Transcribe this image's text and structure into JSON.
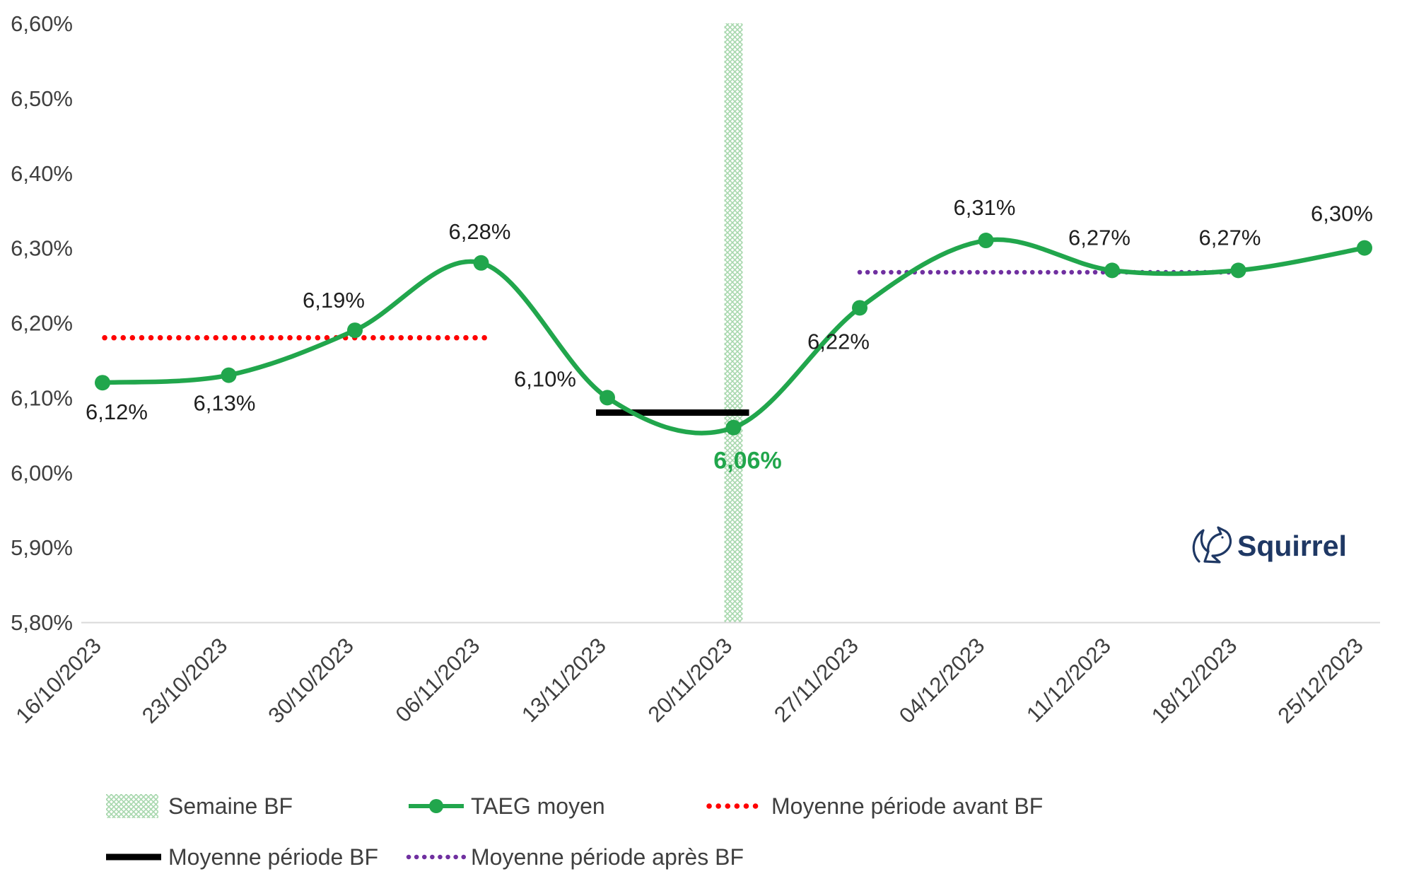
{
  "chart_data": {
    "type": "line",
    "title": "",
    "x": [
      "16/10/2023",
      "23/10/2023",
      "30/10/2023",
      "06/11/2023",
      "13/11/2023",
      "20/11/2023",
      "27/11/2023",
      "04/12/2023",
      "11/12/2023",
      "18/12/2023",
      "25/12/2023"
    ],
    "series": [
      {
        "name": "TAEG moyen",
        "color": "#21A64C",
        "values": [
          6.12,
          6.13,
          6.19,
          6.28,
          6.1,
          6.06,
          6.22,
          6.31,
          6.27,
          6.27,
          6.3
        ],
        "labels": [
          "6,12%",
          "6,13%",
          "6,19%",
          "6,28%",
          "6,10%",
          "6,06%",
          "6,22%",
          "6,31%",
          "6,27%",
          "6,27%",
          "6,30%"
        ]
      }
    ],
    "highlight": {
      "index": 5,
      "label": "6,06%",
      "color": "#21A64C"
    },
    "band": {
      "name": "Semaine BF",
      "x_index": 5,
      "hatch_color": "#A8D8AE"
    },
    "reference_lines": [
      {
        "name": "Moyenne période avant BF",
        "value": 6.18,
        "span_indices": [
          0,
          3
        ],
        "style": "dotted",
        "color": "#FF0000"
      },
      {
        "name": "Moyenne période BF",
        "value": 6.08,
        "span_indices": [
          4,
          5
        ],
        "style": "solid",
        "color": "#000000"
      },
      {
        "name": "Moyenne période après BF",
        "value": 6.2675,
        "span_indices": [
          6,
          9
        ],
        "style": "dotted",
        "color": "#7030A0"
      }
    ],
    "y_axis": {
      "min": 5.8,
      "max": 6.6,
      "step": 0.1,
      "tick_labels": [
        "6,60%",
        "6,50%",
        "6,40%",
        "6,30%",
        "6,20%",
        "6,10%",
        "6,00%",
        "5,90%",
        "5,80%"
      ]
    },
    "grid": false,
    "legend_position": "bottom",
    "legend": [
      {
        "label": "Semaine BF",
        "swatch": "band"
      },
      {
        "label": "TAEG moyen",
        "swatch": "line-marker"
      },
      {
        "label": "Moyenne période avant BF",
        "swatch": "dotted-red"
      },
      {
        "label": "Moyenne période BF",
        "swatch": "solid-black"
      },
      {
        "label": "Moyenne période après BF",
        "swatch": "dotted-purple"
      }
    ]
  },
  "branding": {
    "logo_text": "Squirrel",
    "logo_color": "#1F3864"
  },
  "colors": {
    "series_green": "#21A64C",
    "avg_before_red": "#FF0000",
    "avg_bf_black": "#000000",
    "avg_after_purple": "#7030A0",
    "band_green": "#A8D8AE",
    "axis_text": "#3F3F3F",
    "label_text": "#1F1F1F",
    "legend_text": "#3F3F3F",
    "axis_line": "#D9D9D9"
  }
}
